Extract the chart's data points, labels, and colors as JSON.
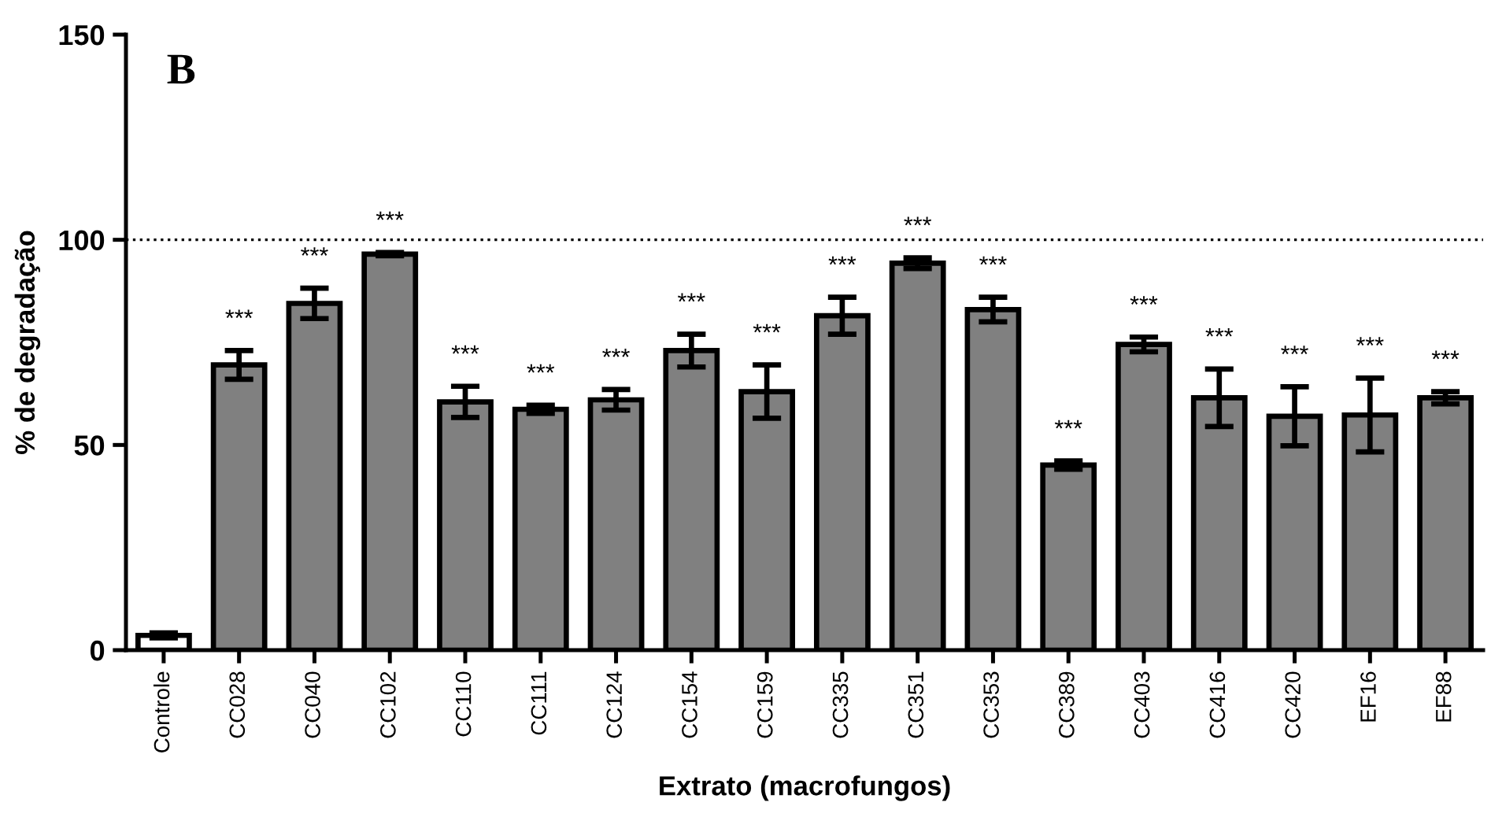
{
  "chart_data": {
    "type": "bar",
    "categories": [
      "Controle",
      "CC028",
      "CC040",
      "CC102",
      "CC110",
      "CC111",
      "CC124",
      "CC154",
      "CC159",
      "CC335",
      "CC351",
      "CC353",
      "CC389",
      "CC403",
      "CC416",
      "CC420",
      "EF16",
      "EF88"
    ],
    "values": [
      3.6,
      69.5,
      84.5,
      96.5,
      60.5,
      58.7,
      61.0,
      73.0,
      63.0,
      81.5,
      94.3,
      83.0,
      45.1,
      74.5,
      61.5,
      57.0,
      57.3,
      61.5
    ],
    "errors": [
      0.6,
      3.5,
      3.7,
      0.4,
      3.8,
      1.0,
      2.5,
      4.0,
      6.5,
      4.5,
      1.3,
      3.0,
      1.0,
      1.8,
      7.0,
      7.2,
      9.0,
      1.5
    ],
    "value_labels": [
      null,
      "***",
      "***",
      "***",
      "***",
      "***",
      "***",
      "***",
      "***",
      "***",
      "***",
      "***",
      "***",
      "***",
      "***",
      "***",
      "***",
      "***"
    ],
    "colors": [
      "#ffffff",
      "#808080",
      "#808080",
      "#808080",
      "#808080",
      "#808080",
      "#808080",
      "#808080",
      "#808080",
      "#808080",
      "#808080",
      "#808080",
      "#808080",
      "#808080",
      "#808080",
      "#808080",
      "#808080",
      "#808080"
    ],
    "ylim": [
      0,
      150
    ],
    "yticks": [
      0,
      50,
      100,
      150
    ],
    "xlabel": "Extrato (macrofungos)",
    "ylabel": "% de degradação",
    "ref_lines": [
      {
        "axis": "y",
        "value": 100,
        "color": "#000000",
        "line_style": "dotted"
      }
    ],
    "annotations": [
      "B"
    ],
    "grid": false
  }
}
